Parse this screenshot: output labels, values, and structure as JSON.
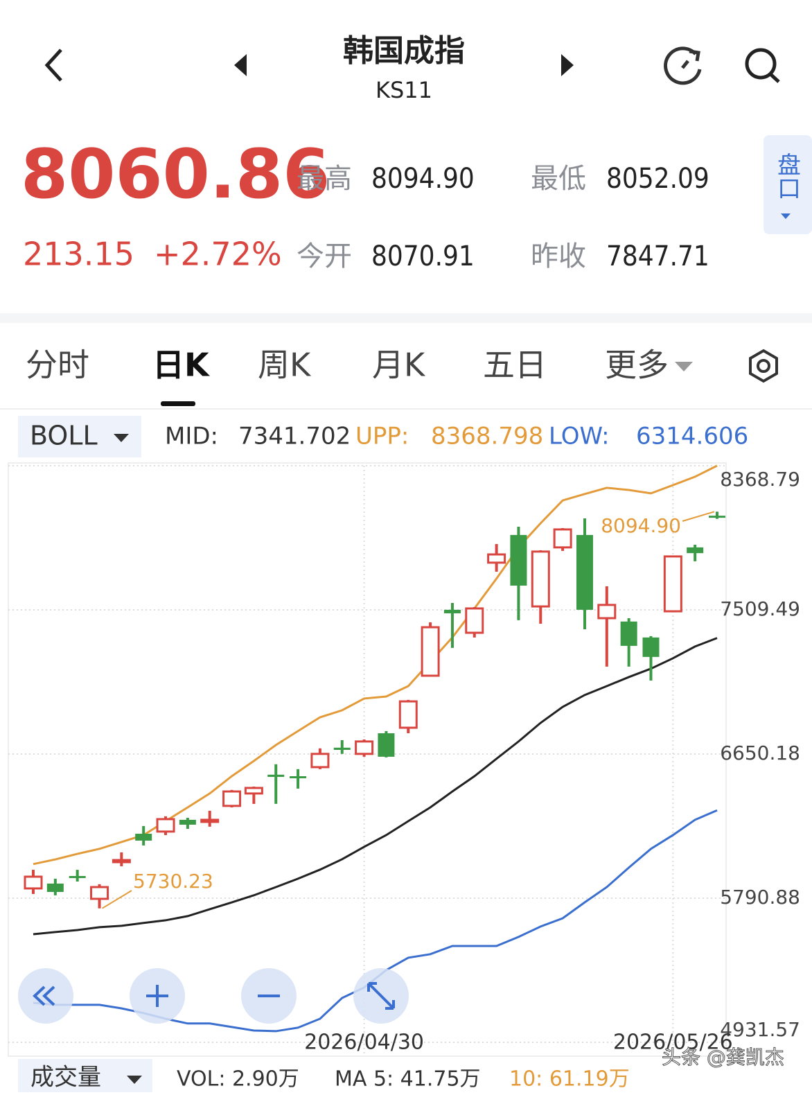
{
  "header": {
    "title": "韩国成指",
    "code": "KS11"
  },
  "quote": {
    "price": "8060.86",
    "change": "213.15",
    "change_pct": "+2.72%",
    "high_label": "最高",
    "high": "8094.90",
    "low_label": "最低",
    "low": "8052.09",
    "open_label": "今开",
    "open": "8070.91",
    "prev_close_label": "昨收",
    "prev_close": "7847.71",
    "panel": "盘口"
  },
  "tabs": [
    "分时",
    "日K",
    "周K",
    "月K",
    "五日",
    "更多"
  ],
  "indicator": {
    "name": "BOLL",
    "mid_label": "MID:",
    "mid": "7341.702",
    "upp_label": "UPP:",
    "upp": "8368.798",
    "low_label": "LOW:",
    "low": "6314.606"
  },
  "chart_data": {
    "type": "candlestick",
    "up_color": "#d9453f",
    "down_color": "#3a9a45",
    "categories": [
      null,
      null,
      null,
      null,
      null,
      null,
      null,
      null,
      null,
      null,
      null,
      null,
      null,
      null,
      null,
      "2026/04/30",
      null,
      null,
      null,
      null,
      null,
      null,
      null,
      null,
      null,
      null,
      null,
      null,
      null,
      "2026/05/26",
      null,
      null
    ],
    "open": [
      5849,
      5878,
      5923,
      5787,
      6010,
      6175,
      6188,
      6258,
      6246,
      6341,
      6415,
      6527,
      6518,
      6572,
      6688,
      6651,
      6774,
      6807,
      7117,
      7510,
      7373,
      7791,
      7956,
      7530,
      7882,
      7956,
      7460,
      7440,
      7345,
      7501,
      7882,
      8070.91
    ],
    "high": [
      5960,
      5907,
      5960,
      5874,
      6064,
      6221,
      6279,
      6270,
      6312,
      6436,
      6456,
      6589,
      6560,
      6684,
      6733,
      6737,
      6787,
      6973,
      7435,
      7551,
      7526,
      7902,
      8005,
      7865,
      7997,
      8055,
      7650,
      7460,
      7353,
      7832,
      7898,
      8094.9
    ],
    "low": [
      5816,
      5808,
      5890,
      5730.23,
      5981,
      6105,
      6167,
      6204,
      6217,
      6332,
      6353,
      6353,
      6444,
      6560,
      6651,
      6634,
      6630,
      6774,
      7113,
      7283,
      7345,
      7737,
      7448,
      7427,
      7861,
      7394,
      7171,
      7171,
      7088,
      7497,
      7799,
      8052.09
    ],
    "close": [
      5919,
      5828,
      5911,
      5857,
      6018,
      6134,
      6262,
      6229,
      6258,
      6427,
      6448,
      6514,
      6506,
      6651,
      6675,
      6725,
      6634,
      6964,
      7406,
      7489,
      7518,
      7840,
      7654,
      7857,
      7989,
      7510,
      7539,
      7295,
      7229,
      7828,
      7847.71,
      8060.86
    ],
    "lines": [
      {
        "color": "#e39b3a",
        "values": [
          5994,
          6022,
          6055,
          6085,
          6126,
          6167,
          6250,
          6332,
          6415,
          6518,
          6609,
          6704,
          6787,
          6869,
          6911,
          6981,
          6993,
          7055,
          7200,
          7345,
          7518,
          7696,
          7882,
          8026,
          8162,
          8200,
          8237,
          8224,
          8204,
          8253,
          8303,
          8368.798
        ]
      },
      {
        "color": "#222222",
        "values": [
          5576,
          5589,
          5601,
          5618,
          5626,
          5643,
          5659,
          5684,
          5725,
          5766,
          5808,
          5857,
          5907,
          5961,
          6023,
          6097,
          6167,
          6250,
          6332,
          6427,
          6518,
          6622,
          6725,
          6836,
          6931,
          7002,
          7055,
          7109,
          7159,
          7221,
          7291,
          7341.702
        ]
      },
      {
        "color": "#3b6fcf",
        "values": [
          5167,
          5155,
          5155,
          5155,
          5134,
          5106,
          5072,
          5044,
          5044,
          5023,
          5002,
          4998,
          5019,
          5072,
          5196,
          5258,
          5362,
          5436,
          5457,
          5506,
          5506,
          5506,
          5560,
          5622,
          5671,
          5766,
          5857,
          5973,
          6085,
          6167,
          6258,
          6314.606
        ]
      }
    ],
    "ylim": [
      4931.57,
      8368.79
    ],
    "yticks": [
      8368.79,
      7509.49,
      6650.18,
      5790.88,
      4931.57
    ],
    "grid": true,
    "annotations": [
      "8094.90",
      "5730.23"
    ]
  },
  "volume": {
    "name": "成交量",
    "vol": "VOL: 2.90万",
    "ma5": "MA 5: 41.75万",
    "ma10": "10: 61.19万"
  },
  "watermark": "头条 @龚凯杰"
}
